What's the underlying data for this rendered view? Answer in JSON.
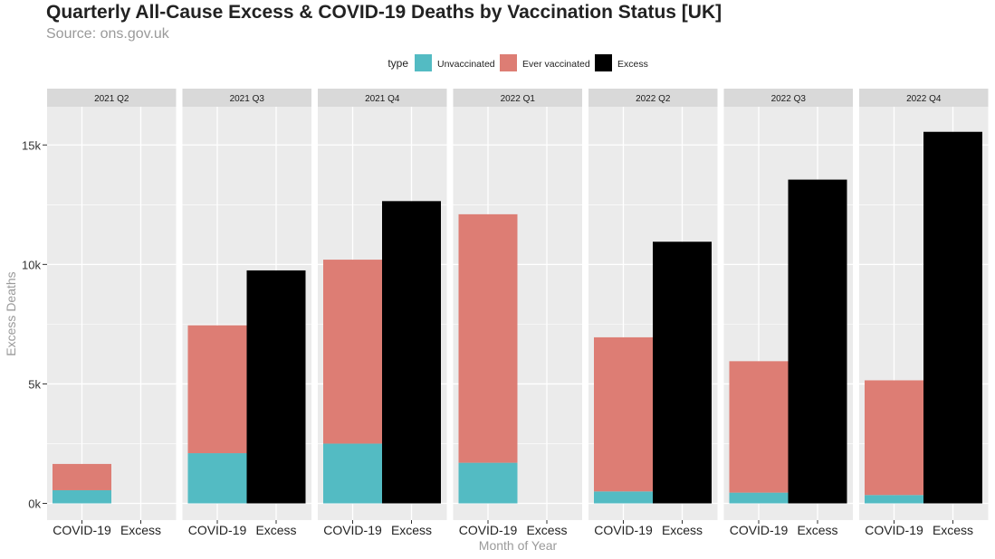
{
  "title": "Quarterly All-Cause Excess & COVID-19 Deaths by Vaccination Status [UK]",
  "subtitle": "Source: ons.gov.uk",
  "chart_data": {
    "type": "bar",
    "stacked": true,
    "faceted": true,
    "xlabel": "Month of Year",
    "ylabel": "Excess Deaths",
    "ylim": [
      -700,
      16600
    ],
    "yticks": [
      0,
      5000,
      10000,
      15000
    ],
    "ytick_labels": [
      "0k",
      "5k",
      "10k",
      "15k"
    ],
    "categories": [
      "COVID-19",
      "Excess"
    ],
    "legend": {
      "title": "type",
      "position": "top",
      "entries": [
        {
          "label": "Unvaccinated",
          "color": "#53bbc3"
        },
        {
          "label": "Ever vaccinated",
          "color": "#dd7d74"
        },
        {
          "label": "Excess",
          "color": "#000000"
        }
      ]
    },
    "colors": {
      "unvaccinated": "#53bbc3",
      "ever_vaccinated": "#dd7d74",
      "excess": "#000000",
      "panel_bg": "#ebebeb",
      "strip_bg": "#d9d9d9",
      "grid": "#ffffff"
    },
    "grid": true,
    "panels": [
      {
        "label": "2021 Q2",
        "unvaccinated": 550,
        "ever_vaccinated": 1100,
        "excess": 0
      },
      {
        "label": "2021 Q3",
        "unvaccinated": 2100,
        "ever_vaccinated": 5350,
        "excess": 9750
      },
      {
        "label": "2021 Q4",
        "unvaccinated": 2500,
        "ever_vaccinated": 7700,
        "excess": 12650
      },
      {
        "label": "2022 Q1",
        "unvaccinated": 1700,
        "ever_vaccinated": 10400,
        "excess": 0
      },
      {
        "label": "2022 Q2",
        "unvaccinated": 500,
        "ever_vaccinated": 6450,
        "excess": 10950
      },
      {
        "label": "2022 Q3",
        "unvaccinated": 450,
        "ever_vaccinated": 5500,
        "excess": 13550
      },
      {
        "label": "2022 Q4",
        "unvaccinated": 350,
        "ever_vaccinated": 4800,
        "excess": 15550
      }
    ]
  }
}
